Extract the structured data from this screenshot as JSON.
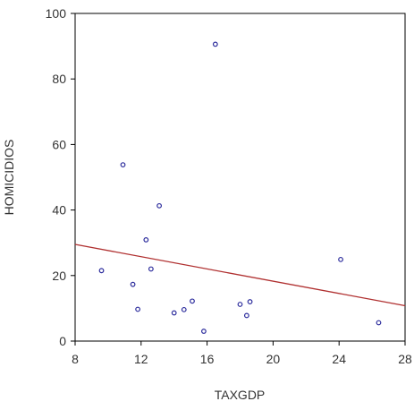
{
  "chart_data": {
    "type": "scatter",
    "title": "",
    "xlabel": "TAXGDP",
    "ylabel": "HOMICIDIOS",
    "xlim": [
      8,
      28
    ],
    "ylim": [
      0,
      100
    ],
    "xticks": [
      "8",
      "12",
      "16",
      "20",
      "24",
      "28"
    ],
    "yticks": [
      "0",
      "20",
      "40",
      "60",
      "80",
      "100"
    ],
    "grid": false,
    "legend": "none",
    "point_color": "#2b2b9c",
    "fit_line_color": "#b03030",
    "series": [
      {
        "points": [
          {
            "x": 9.6,
            "y": 21.5
          },
          {
            "x": 10.9,
            "y": 53.8
          },
          {
            "x": 11.5,
            "y": 17.3
          },
          {
            "x": 11.8,
            "y": 9.7
          },
          {
            "x": 12.3,
            "y": 30.9
          },
          {
            "x": 12.6,
            "y": 22.0
          },
          {
            "x": 13.1,
            "y": 41.3
          },
          {
            "x": 14.0,
            "y": 8.6
          },
          {
            "x": 14.6,
            "y": 9.6
          },
          {
            "x": 15.1,
            "y": 12.2
          },
          {
            "x": 15.8,
            "y": 3.0
          },
          {
            "x": 16.5,
            "y": 90.6
          },
          {
            "x": 18.0,
            "y": 11.2
          },
          {
            "x": 18.4,
            "y": 7.8
          },
          {
            "x": 18.6,
            "y": 12.0
          },
          {
            "x": 24.1,
            "y": 24.9
          },
          {
            "x": 26.4,
            "y": 5.6
          }
        ]
      }
    ],
    "fit_line": {
      "x": [
        8,
        28
      ],
      "y": [
        29.5,
        10.8
      ]
    }
  }
}
